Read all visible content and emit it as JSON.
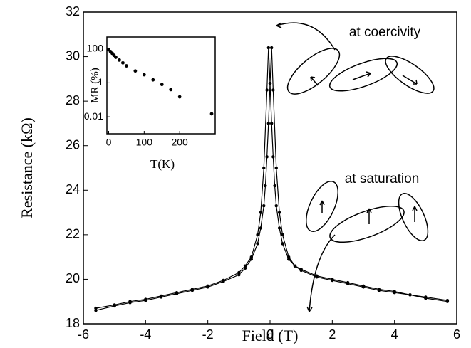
{
  "chart_data": [
    {
      "type": "line",
      "xlabel": "Field (T)",
      "ylabel": "Resistance (kΩ)",
      "xlim": [
        -6,
        6
      ],
      "ylim": [
        18,
        32
      ],
      "xticks": [
        -6,
        -4,
        -2,
        0,
        2,
        4,
        6
      ],
      "yticks": [
        18,
        20,
        22,
        24,
        26,
        28,
        30,
        32
      ],
      "annotations": [
        "at coercivity",
        "at saturation"
      ],
      "series": [
        {
          "color": "#000000",
          "x": [
            -5.6,
            -5,
            -4.5,
            -4,
            -3.5,
            -3,
            -2.5,
            -2,
            -1.5,
            -1,
            -0.8,
            -0.6,
            -0.4,
            -0.3,
            -0.2,
            -0.15,
            -0.1,
            -0.05,
            0,
            0.05,
            0.1,
            0.2,
            0.3,
            0.4,
            0.6,
            0.8,
            1,
            1.5,
            2,
            2.5,
            3,
            3.5,
            4,
            4.5,
            5,
            5.7
          ],
          "values": [
            18.6,
            18.8,
            18.95,
            19.05,
            19.2,
            19.35,
            19.5,
            19.65,
            19.9,
            20.2,
            20.5,
            20.9,
            21.6,
            22.3,
            23.3,
            24.2,
            25.5,
            27,
            28.8,
            30.4,
            28.5,
            25,
            23,
            22,
            21,
            20.6,
            20.4,
            20.1,
            19.95,
            19.8,
            19.65,
            19.5,
            19.4,
            19.3,
            19.15,
            19.0
          ]
        },
        {
          "color": "#000000",
          "x": [
            -5.6,
            -5,
            -4.5,
            -4,
            -3.5,
            -3,
            -2.5,
            -2,
            -1.5,
            -1,
            -0.8,
            -0.6,
            -0.4,
            -0.3,
            -0.2,
            -0.1,
            -0.05,
            0,
            0.05,
            0.1,
            0.15,
            0.2,
            0.3,
            0.4,
            0.6,
            0.8,
            1,
            1.5,
            2,
            2.5,
            3,
            3.5,
            4,
            4.5,
            5,
            5.7
          ],
          "values": [
            18.7,
            18.85,
            19.0,
            19.1,
            19.25,
            19.4,
            19.55,
            19.7,
            19.95,
            20.3,
            20.6,
            21.0,
            22.0,
            23.0,
            25.0,
            28.5,
            30.4,
            28.8,
            27,
            25.5,
            24.2,
            23.3,
            22.3,
            21.6,
            20.9,
            20.6,
            20.45,
            20.15,
            20.0,
            19.85,
            19.7,
            19.55,
            19.45,
            19.3,
            19.2,
            19.05
          ]
        }
      ]
    },
    {
      "type": "scatter",
      "xlabel": "T(K)",
      "ylabel": "MR (%)",
      "log_y": true,
      "xlim": [
        -5,
        300
      ],
      "ylim": [
        0.001,
        500
      ],
      "xticks": [
        0,
        100,
        200
      ],
      "yticks": [
        100,
        1,
        0.01
      ],
      "color": "#000000",
      "x": [
        0,
        5,
        10,
        15,
        20,
        30,
        40,
        50,
        75,
        100,
        125,
        150,
        175,
        200,
        290
      ],
      "values": [
        90,
        70,
        55,
        42,
        32,
        22,
        15,
        10,
        5,
        3,
        1.5,
        0.8,
        0.4,
        0.15,
        0.015
      ]
    }
  ]
}
